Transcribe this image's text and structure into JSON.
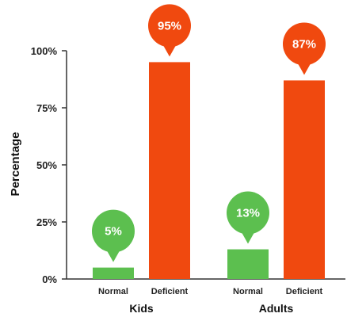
{
  "chart_data": {
    "type": "bar",
    "ylabel": "Percentage",
    "ylim": [
      0,
      100
    ],
    "yticks": [
      0,
      25,
      50,
      75,
      100
    ],
    "ytick_labels": [
      "0%",
      "25%",
      "50%",
      "75%",
      "100%"
    ],
    "groups": [
      {
        "label": "Kids",
        "bars": [
          {
            "category": "Normal",
            "value": 5,
            "data_label": "5%",
            "color": "#5cbf4f"
          },
          {
            "category": "Deficient",
            "value": 95,
            "data_label": "95%",
            "color": "#f0490f"
          }
        ]
      },
      {
        "label": "Adults",
        "bars": [
          {
            "category": "Normal",
            "value": 13,
            "data_label": "13%",
            "color": "#5cbf4f"
          },
          {
            "category": "Deficient",
            "value": 87,
            "data_label": "87%",
            "color": "#f0490f"
          }
        ]
      }
    ],
    "grid": false,
    "legend": "none"
  }
}
